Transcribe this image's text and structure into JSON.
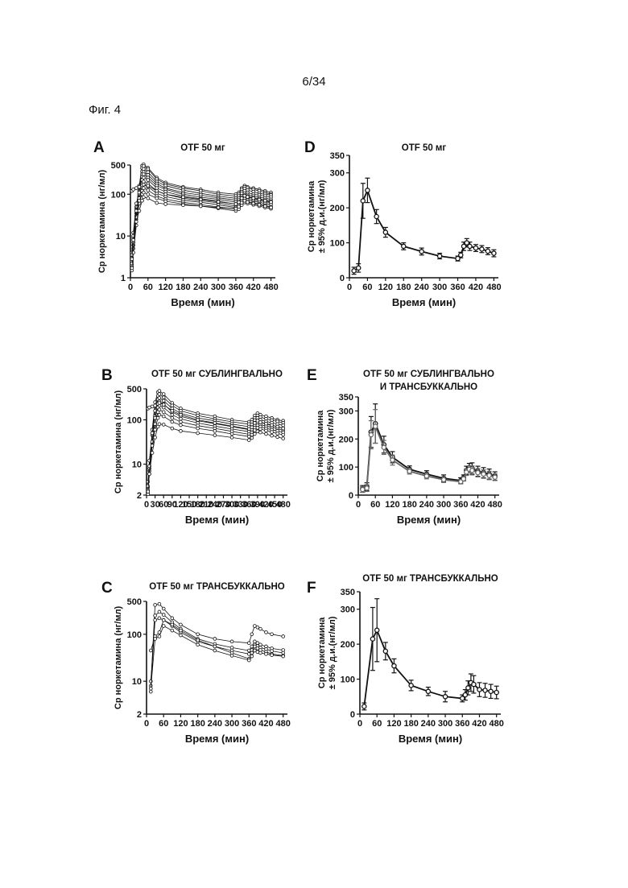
{
  "page_number": "6/34",
  "figure_label": "Фиг. 4",
  "chart_data": [
    {
      "panel": "A",
      "type": "line",
      "title": "OTF 50 мг",
      "xlabel": "Время (мин)",
      "ylabel": "Ср норкетамина (нг/мл)",
      "ylabel_line2": "",
      "yscale": "log",
      "xlim": [
        0,
        495
      ],
      "ylim": [
        1,
        500
      ],
      "xticks": [
        "0",
        "60",
        "120",
        "180",
        "240",
        "300",
        "360",
        "420",
        "480"
      ],
      "yticks": [
        "1",
        "10",
        "100",
        "500"
      ],
      "x": [
        5,
        10,
        20,
        30,
        40,
        45,
        60,
        90,
        120,
        180,
        240,
        300,
        360,
        370,
        380,
        390,
        400,
        420,
        440,
        460,
        480
      ],
      "series": [
        {
          "values": [
            2,
            7,
            45,
            160,
            480,
            520,
            430,
            250,
            190,
            150,
            130,
            110,
            100,
            110,
            140,
            160,
            150,
            140,
            130,
            120,
            110
          ]
        },
        {
          "values": [
            1.8,
            6,
            35,
            140,
            420,
            470,
            400,
            230,
            175,
            140,
            120,
            100,
            90,
            100,
            130,
            150,
            140,
            130,
            120,
            110,
            100
          ]
        },
        {
          "values": [
            2.5,
            8,
            40,
            120,
            350,
            400,
            340,
            200,
            160,
            125,
            105,
            90,
            80,
            90,
            115,
            135,
            125,
            115,
            105,
            100,
            95
          ]
        },
        {
          "values": [
            3,
            9,
            50,
            150,
            300,
            340,
            290,
            180,
            140,
            110,
            95,
            82,
            72,
            80,
            105,
            120,
            110,
            100,
            95,
            90,
            85
          ]
        },
        {
          "values": [
            1.5,
            5,
            25,
            90,
            260,
            300,
            250,
            160,
            130,
            100,
            85,
            75,
            65,
            72,
            92,
            105,
            98,
            90,
            85,
            80,
            75
          ]
        },
        {
          "values": [
            2,
            6,
            30,
            100,
            220,
            250,
            220,
            140,
            115,
            90,
            78,
            68,
            58,
            65,
            85,
            95,
            90,
            82,
            78,
            72,
            68
          ]
        },
        {
          "values": [
            4,
            12,
            60,
            110,
            180,
            200,
            180,
            120,
            100,
            80,
            70,
            62,
            52,
            58,
            75,
            85,
            80,
            74,
            70,
            66,
            62
          ]
        },
        {
          "values": [
            2.2,
            7,
            28,
            80,
            150,
            170,
            150,
            105,
            88,
            72,
            64,
            56,
            48,
            54,
            68,
            78,
            72,
            68,
            64,
            60,
            56
          ]
        },
        {
          "values": [
            1.7,
            4,
            18,
            60,
            120,
            140,
            125,
            90,
            76,
            64,
            56,
            50,
            44,
            48,
            60,
            70,
            66,
            62,
            58,
            54,
            50
          ]
        },
        {
          "values": [
            3.5,
            10,
            40,
            70,
            100,
            110,
            100,
            80,
            68,
            58,
            52,
            46,
            40,
            44,
            55,
            64,
            60,
            56,
            52,
            48,
            45
          ]
        },
        {
          "values": [
            120,
            130,
            140,
            150,
            165,
            170,
            160,
            120,
            100,
            85,
            75,
            66,
            58,
            64,
            80,
            92,
            86,
            80,
            74,
            70,
            65
          ]
        },
        {
          "values": [
            2.8,
            8,
            22,
            40,
            70,
            85,
            80,
            62,
            58,
            55,
            52,
            48,
            45,
            50,
            62,
            70,
            65,
            60,
            56,
            52,
            48
          ]
        }
      ]
    },
    {
      "panel": "B",
      "type": "line",
      "title": "OTF 50 мг  СУБЛИНГВАЛЬНО",
      "xlabel": "Время (мин)",
      "ylabel": "Ср норкетамина (нг/мл)",
      "ylabel_line2": "",
      "yscale": "log",
      "xlim": [
        0,
        495
      ],
      "ylim": [
        2,
        500
      ],
      "xticks": [
        "0",
        "30",
        "60",
        "90",
        "120",
        "150",
        "180",
        "210",
        "240",
        "270",
        "300",
        "330",
        "360",
        "390",
        "420",
        "450",
        "480"
      ],
      "yticks": [
        "2",
        "10",
        "100",
        "500"
      ],
      "x": [
        5,
        10,
        20,
        30,
        40,
        45,
        60,
        90,
        120,
        180,
        240,
        300,
        360,
        370,
        380,
        390,
        400,
        420,
        440,
        460,
        480
      ],
      "series": [
        {
          "values": [
            2.2,
            8,
            60,
            250,
            420,
            450,
            380,
            240,
            180,
            140,
            120,
            100,
            90,
            100,
            125,
            140,
            130,
            120,
            110,
            100,
            95
          ]
        },
        {
          "values": [
            2.5,
            7,
            45,
            200,
            350,
            380,
            320,
            210,
            160,
            125,
            105,
            90,
            80,
            88,
            110,
            125,
            115,
            105,
            98,
            92,
            85
          ]
        },
        {
          "values": [
            3,
            9,
            50,
            160,
            290,
            310,
            270,
            180,
            140,
            110,
            95,
            80,
            70,
            78,
            98,
            110,
            100,
            92,
            86,
            80,
            75
          ]
        },
        {
          "values": [
            2.1,
            6,
            30,
            120,
            240,
            260,
            230,
            150,
            120,
            95,
            82,
            70,
            60,
            68,
            85,
            95,
            88,
            80,
            75,
            70,
            65
          ]
        },
        {
          "values": [
            4,
            12,
            50,
            110,
            190,
            210,
            190,
            130,
            105,
            85,
            72,
            62,
            54,
            60,
            75,
            85,
            78,
            72,
            68,
            63,
            58
          ]
        },
        {
          "values": [
            2.6,
            8,
            32,
            80,
            150,
            170,
            150,
            110,
            90,
            74,
            64,
            55,
            47,
            52,
            66,
            75,
            70,
            64,
            60,
            56,
            52
          ]
        },
        {
          "values": [
            3.2,
            9,
            26,
            60,
            110,
            130,
            120,
            90,
            76,
            64,
            56,
            48,
            42,
            46,
            58,
            66,
            62,
            57,
            53,
            49,
            46
          ]
        },
        {
          "values": [
            180,
            190,
            200,
            210,
            230,
            240,
            220,
            160,
            130,
            100,
            85,
            72,
            62,
            68,
            85,
            96,
            88,
            82,
            76,
            70,
            64
          ]
        },
        {
          "values": [
            2.4,
            6,
            18,
            40,
            70,
            80,
            78,
            64,
            56,
            50,
            45,
            40,
            35,
            39,
            48,
            55,
            52,
            48,
            44,
            41,
            38
          ]
        }
      ]
    },
    {
      "panel": "C",
      "type": "line",
      "title": "OTF 50 мг  ТРАНСБУККАЛЬНО",
      "xlabel": "Время (мин)",
      "ylabel": "Ср норкетамина (нг/мл)",
      "ylabel_line2": "",
      "yscale": "log",
      "xlim": [
        0,
        495
      ],
      "ylim": [
        2,
        500
      ],
      "xticks": [
        "0",
        "60",
        "120",
        "180",
        "240",
        "300",
        "360",
        "420",
        "480"
      ],
      "yticks": [
        "2",
        "10",
        "100",
        "500"
      ],
      "x": [
        15,
        30,
        45,
        60,
        90,
        120,
        180,
        240,
        300,
        360,
        370,
        380,
        390,
        400,
        420,
        440,
        480
      ],
      "series": [
        {
          "values": [
            8,
            420,
            440,
            350,
            220,
            160,
            100,
            80,
            70,
            65,
            100,
            150,
            140,
            130,
            110,
            100,
            90
          ]
        },
        {
          "values": [
            6,
            250,
            300,
            260,
            180,
            130,
            80,
            62,
            52,
            45,
            55,
            70,
            65,
            60,
            55,
            50,
            46
          ]
        },
        {
          "values": [
            10,
            200,
            220,
            200,
            150,
            110,
            70,
            55,
            45,
            38,
            46,
            60,
            56,
            52,
            48,
            44,
            40
          ]
        },
        {
          "values": [
            45,
            90,
            110,
            200,
            160,
            120,
            75,
            55,
            40,
            30,
            40,
            55,
            50,
            46,
            42,
            38,
            35
          ]
        },
        {
          "values": [
            7,
            80,
            90,
            150,
            120,
            95,
            60,
            45,
            35,
            28,
            34,
            45,
            42,
            40,
            38,
            36,
            34
          ]
        }
      ]
    },
    {
      "panel": "D",
      "type": "line",
      "title": "OTF 50 мг",
      "xlabel": "Время (мин)",
      "ylabel": "Ср норкетамина",
      "ylabel_line2": "± 95% д.и.(нг/мл)",
      "yscale": "linear",
      "xlim": [
        0,
        495
      ],
      "ylim": [
        0,
        350
      ],
      "xticks": [
        "0",
        "60",
        "120",
        "180",
        "240",
        "300",
        "360",
        "420",
        "480"
      ],
      "yticks": [
        "0",
        "100",
        "200",
        "300",
        "350"
      ],
      "x": [
        15,
        30,
        45,
        60,
        90,
        120,
        180,
        240,
        300,
        360,
        370,
        380,
        390,
        400,
        420,
        440,
        460,
        480
      ],
      "series": [
        {
          "values": [
            20,
            28,
            220,
            250,
            175,
            130,
            90,
            75,
            62,
            55,
            65,
            90,
            100,
            90,
            85,
            82,
            76,
            70
          ],
          "errors": [
            10,
            12,
            50,
            35,
            20,
            14,
            10,
            10,
            8,
            7,
            8,
            12,
            12,
            12,
            10,
            10,
            10,
            10
          ]
        }
      ]
    },
    {
      "panel": "E",
      "type": "line",
      "title": "OTF 50 мг  СУБЛИНГВАЛЬНО",
      "title_line2": "И ТРАНСБУККАЛЬНО",
      "xlabel": "Время (мин)",
      "ylabel": "Ср норкетамина",
      "ylabel_line2": "± 95% д.и.(нг/мл)",
      "yscale": "linear",
      "xlim": [
        0,
        495
      ],
      "ylim": [
        0,
        350
      ],
      "xticks": [
        "0",
        "60",
        "120",
        "180",
        "240",
        "300",
        "360",
        "420",
        "480"
      ],
      "yticks": [
        "0",
        "100",
        "200",
        "300",
        "350"
      ],
      "x": [
        15,
        30,
        45,
        60,
        90,
        120,
        180,
        240,
        300,
        360,
        370,
        380,
        390,
        400,
        420,
        440,
        460,
        480
      ],
      "series": [
        {
          "values": [
            22,
            30,
            225,
            255,
            180,
            135,
            92,
            75,
            60,
            52,
            62,
            88,
            98,
            95,
            85,
            80,
            75,
            68
          ],
          "errors": [
            12,
            14,
            55,
            70,
            30,
            20,
            12,
            12,
            12,
            10,
            10,
            15,
            15,
            20,
            18,
            18,
            18,
            15
          ]
        },
        {
          "values": [
            20,
            25,
            215,
            245,
            170,
            125,
            85,
            68,
            55,
            48,
            58,
            82,
            92,
            88,
            80,
            75,
            70,
            64
          ],
          "errors": [
            10,
            12,
            50,
            60,
            25,
            18,
            10,
            10,
            10,
            8,
            8,
            12,
            12,
            16,
            15,
            15,
            15,
            12
          ]
        }
      ]
    },
    {
      "panel": "F",
      "type": "line",
      "title": "OTF 50 мг  ТРАНСБУККАЛЬНО",
      "xlabel": "Время (мин)",
      "ylabel": "Ср норкетамина",
      "ylabel_line2": "± 95% д.и.(нг/мл)",
      "yscale": "linear",
      "xlim": [
        0,
        495
      ],
      "ylim": [
        0,
        350
      ],
      "xticks": [
        "0",
        "60",
        "120",
        "180",
        "240",
        "300",
        "360",
        "420",
        "480"
      ],
      "yticks": [
        "0",
        "100",
        "200",
        "300",
        "350"
      ],
      "x": [
        15,
        45,
        60,
        90,
        120,
        180,
        240,
        300,
        360,
        370,
        380,
        390,
        400,
        420,
        440,
        460,
        480
      ],
      "series": [
        {
          "values": [
            22,
            215,
            240,
            180,
            138,
            82,
            65,
            50,
            45,
            55,
            75,
            90,
            85,
            70,
            68,
            65,
            62
          ],
          "errors": [
            10,
            90,
            90,
            25,
            20,
            15,
            12,
            15,
            10,
            15,
            20,
            25,
            25,
            20,
            20,
            20,
            18
          ]
        }
      ]
    }
  ]
}
